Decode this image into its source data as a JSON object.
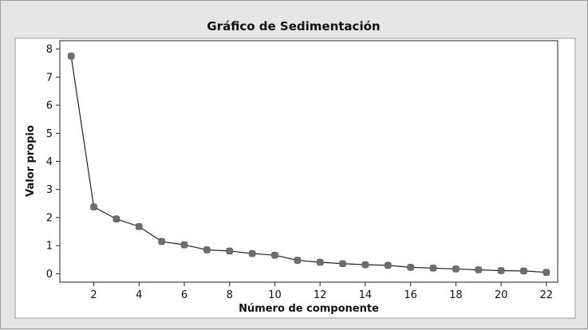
{
  "chart_data": {
    "type": "line",
    "title": "Gráfico de Sedimentación",
    "xlabel": "Número de componente",
    "ylabel": "Valor propio",
    "xlim": [
      0.5,
      22.5
    ],
    "ylim": [
      -0.3,
      8.3
    ],
    "xticks": [
      2,
      4,
      6,
      8,
      10,
      12,
      14,
      16,
      18,
      20,
      22
    ],
    "yticks": [
      0,
      1,
      2,
      3,
      4,
      5,
      6,
      7,
      8
    ],
    "grid": false,
    "series": [
      {
        "x": [
          1,
          2,
          3,
          4,
          5,
          6,
          7,
          8,
          9,
          10,
          11,
          12,
          13,
          14,
          15,
          16,
          17,
          18,
          19,
          20,
          21,
          22
        ],
        "values": [
          7.75,
          2.38,
          1.95,
          1.68,
          1.15,
          1.03,
          0.85,
          0.81,
          0.72,
          0.66,
          0.48,
          0.41,
          0.36,
          0.32,
          0.3,
          0.23,
          0.2,
          0.17,
          0.14,
          0.11,
          0.1,
          0.05
        ]
      }
    ],
    "colors": {
      "line": "#222222",
      "marker": "#6e6e6e",
      "plot_bg": "#ffffff",
      "figure_bg": "#e6e6e6"
    }
  }
}
